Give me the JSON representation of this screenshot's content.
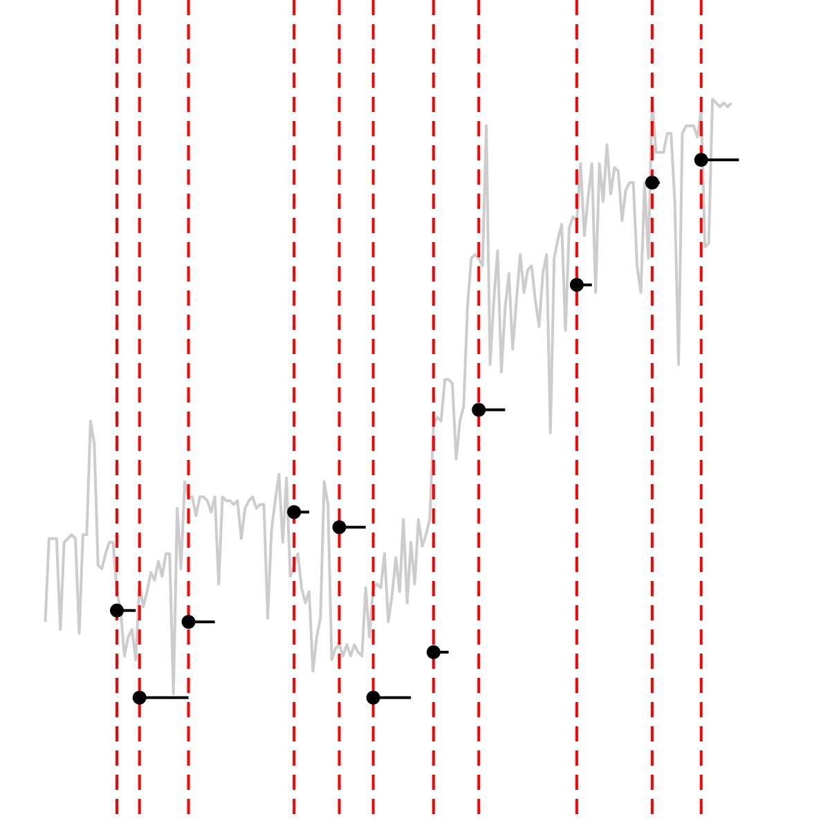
{
  "chart_data": {
    "type": "line",
    "title": "",
    "xlabel": "",
    "ylabel": "",
    "axes_visible": false,
    "grid": false,
    "legend": "none",
    "xlim": [
      0,
      200
    ],
    "ylim": [
      0,
      200
    ],
    "colors": {
      "raw_series": "#cccccc",
      "changepoint": "#ff0000",
      "segment": "#000000",
      "background": "#ffffff"
    },
    "series": [
      {
        "values": [
          44,
          66,
          66,
          66,
          42,
          65,
          66,
          67,
          66,
          41,
          67,
          67,
          97,
          91,
          59,
          58,
          62,
          65,
          65,
          52,
          47,
          35,
          40,
          42,
          34,
          54,
          48,
          52,
          57,
          55,
          60,
          56,
          62,
          62,
          25,
          74,
          58,
          81,
          77,
          77,
          72,
          77,
          77,
          76,
          73,
          77,
          54,
          77,
          76,
          76,
          75,
          76,
          66,
          74,
          76,
          77,
          74,
          75,
          75,
          45,
          68,
          76,
          83,
          65,
          82,
          56,
          59,
          62,
          53,
          49,
          52,
          31,
          40,
          45,
          81,
          75,
          34,
          37,
          38,
          35,
          38,
          35,
          38,
          36,
          35,
          53,
          40,
          53,
          54,
          53,
          62,
          44,
          51,
          61,
          52,
          71,
          49,
          65,
          54,
          71,
          64,
          67,
          71,
          96,
          98,
          97,
          108,
          108,
          107,
          87,
          97,
          101,
          127,
          140,
          141,
          140,
          138,
          175,
          112,
          129,
          142,
          110,
          127,
          136,
          116,
          129,
          141,
          131,
          137,
          138,
          129,
          122,
          136,
          141,
          94,
          140,
          145,
          149,
          121,
          148,
          151,
          150,
          165,
          146,
          156,
          165,
          131,
          165,
          155,
          170,
          157,
          164,
          163,
          150,
          158,
          160,
          160,
          138,
          131,
          160,
          140,
          182,
          168,
          168,
          168,
          173,
          173,
          155,
          112,
          173,
          175,
          175,
          175,
          172,
          179,
          143,
          144,
          182,
          181,
          180,
          181,
          180,
          181
        ],
        "x_start": 1,
        "x_step": 1
      }
    ],
    "changepoints": [
      20,
      26,
      39,
      67,
      79,
      88,
      104,
      116,
      142,
      162,
      175
    ],
    "segment_levels": [
      47,
      24,
      44,
      73,
      69,
      24,
      36,
      100,
      133,
      160,
      166
    ],
    "segment_ends": [
      25,
      39,
      46,
      71,
      86,
      98,
      108,
      123,
      146,
      164,
      185
    ]
  }
}
